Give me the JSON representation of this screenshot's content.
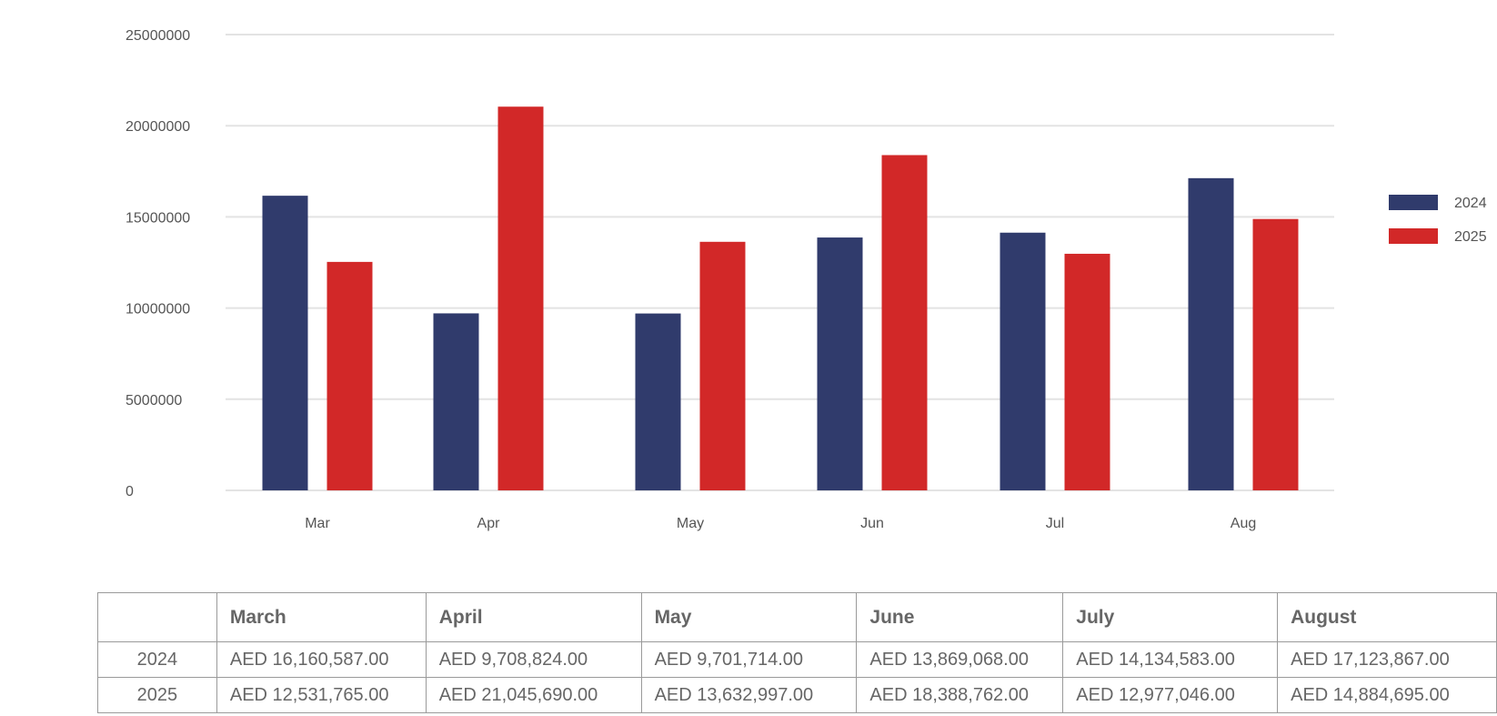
{
  "chart_data": {
    "type": "bar",
    "categories": [
      "Mar",
      "Apr",
      "May",
      "Jun",
      "Jul",
      "Aug"
    ],
    "series": [
      {
        "name": "2024",
        "color": "#303b6c",
        "values": [
          16160587,
          9708824,
          9701714,
          13869068,
          14134583,
          17123867
        ]
      },
      {
        "name": "2025",
        "color": "#d22828",
        "values": [
          12531765,
          21045690,
          13632997,
          18388762,
          12977046,
          14884695
        ]
      }
    ],
    "ylim": [
      0,
      25000000
    ],
    "yticks": [
      0,
      5000000,
      10000000,
      15000000,
      20000000,
      25000000
    ],
    "grid": true,
    "legend_position": "right",
    "title": "",
    "xlabel": "",
    "ylabel": ""
  },
  "table": {
    "columns": [
      "",
      "March",
      "April",
      "May",
      "June",
      "July",
      "August"
    ],
    "rows": [
      {
        "label": "2024",
        "cells": [
          "AED 16,160,587.00",
          "AED 9,708,824.00",
          "AED 9,701,714.00",
          "AED 13,869,068.00",
          "AED 14,134,583.00",
          "AED 17,123,867.00"
        ]
      },
      {
        "label": "2025",
        "cells": [
          "AED 12,531,765.00",
          "AED 21,045,690.00",
          "AED 13,632,997.00",
          "AED 18,388,762.00",
          "AED 12,977,046.00",
          "AED 14,884,695.00"
        ]
      }
    ]
  }
}
